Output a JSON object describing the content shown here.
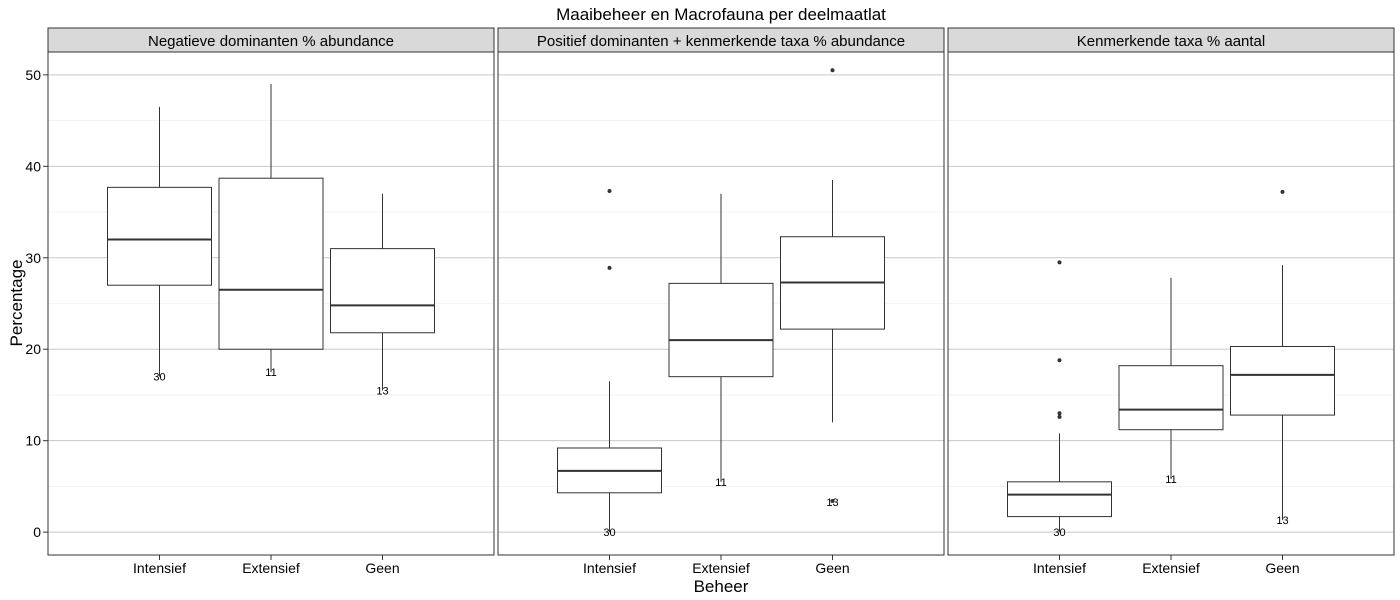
{
  "chart_data": {
    "type": "boxplot",
    "title": "Maaibeheer en Macrofauna per deelmaatlat",
    "xlabel": "Beheer",
    "ylabel": "Percentage",
    "ylim": [
      -2.5,
      52.5
    ],
    "y_ticks": [
      0,
      10,
      20,
      30,
      40,
      50
    ],
    "categories": [
      "Intensief",
      "Extensief",
      "Geen"
    ],
    "grid": true,
    "colors": {
      "strip_background": "#d9d9d9",
      "panel_border": "#333333",
      "grid_major": "#c8c8c8",
      "grid_minor": "#ebebeb",
      "box_line": "#333333"
    },
    "panels": [
      {
        "label": "Negatieve dominanten % abundance",
        "boxes": [
          {
            "category": "Intensief",
            "whisker_low": 17.0,
            "q1": 27.0,
            "median": 32.0,
            "q3": 37.7,
            "whisker_high": 46.5,
            "outliers": [],
            "n_label": "30",
            "n_label_y": 17.0
          },
          {
            "category": "Extensief",
            "whisker_low": 17.5,
            "q1": 20.0,
            "median": 26.5,
            "q3": 38.7,
            "whisker_high": 49.0,
            "outliers": [],
            "n_label": "11",
            "n_label_y": 17.5
          },
          {
            "category": "Geen",
            "whisker_low": 15.5,
            "q1": 21.8,
            "median": 24.8,
            "q3": 31.0,
            "whisker_high": 37.0,
            "outliers": [],
            "n_label": "13",
            "n_label_y": 15.5
          }
        ]
      },
      {
        "label": "Positief dominanten + kenmerkende taxa % abundance",
        "boxes": [
          {
            "category": "Intensief",
            "whisker_low": 0.0,
            "q1": 4.3,
            "median": 6.7,
            "q3": 9.2,
            "whisker_high": 16.5,
            "outliers": [
              37.3,
              28.9
            ],
            "n_label": "30",
            "n_label_y": 0.0
          },
          {
            "category": "Extensief",
            "whisker_low": 5.5,
            "q1": 17.0,
            "median": 21.0,
            "q3": 27.2,
            "whisker_high": 37.0,
            "outliers": [],
            "n_label": "11",
            "n_label_y": 5.5
          },
          {
            "category": "Geen",
            "whisker_low": 12.0,
            "q1": 22.2,
            "median": 27.3,
            "q3": 32.3,
            "whisker_high": 38.5,
            "outliers": [
              50.5,
              3.4
            ],
            "n_label": "13",
            "n_label_y": 3.3
          }
        ]
      },
      {
        "label": "Kenmerkende taxa % aantal",
        "boxes": [
          {
            "category": "Intensief",
            "whisker_low": 0.0,
            "q1": 1.7,
            "median": 4.1,
            "q3": 5.5,
            "whisker_high": 10.8,
            "outliers": [
              29.5,
              18.8,
              13.0,
              12.6
            ],
            "n_label": "30",
            "n_label_y": 0.0
          },
          {
            "category": "Extensief",
            "whisker_low": 5.8,
            "q1": 11.2,
            "median": 13.4,
            "q3": 18.2,
            "whisker_high": 27.8,
            "outliers": [],
            "n_label": "11",
            "n_label_y": 5.8
          },
          {
            "category": "Geen",
            "whisker_low": 1.3,
            "q1": 12.8,
            "median": 17.2,
            "q3": 20.3,
            "whisker_high": 29.2,
            "outliers": [
              37.2
            ],
            "n_label": "13",
            "n_label_y": 1.3
          }
        ]
      }
    ]
  }
}
